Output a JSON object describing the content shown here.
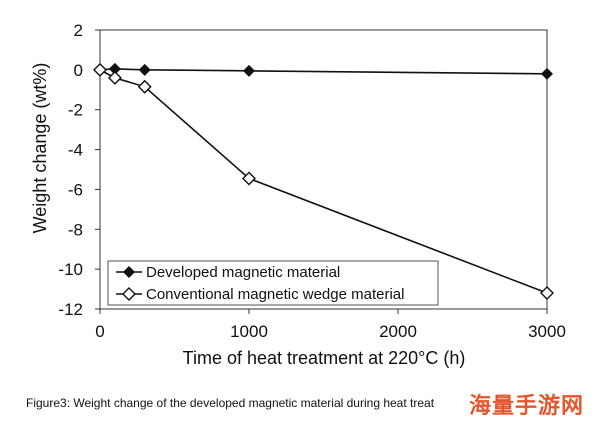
{
  "chart_data": {
    "type": "line",
    "xlabel": "Time of heat treatment at 220°C (h)",
    "ylabel": "Weight change (wt%)",
    "xlim": [
      0,
      3000
    ],
    "ylim": [
      -12,
      2
    ],
    "x_ticks": [
      0,
      1000,
      2000,
      3000
    ],
    "y_ticks": [
      2,
      0,
      -2,
      -4,
      -6,
      -8,
      -10,
      -12
    ],
    "x_tick_labels": [
      "0",
      "1000",
      "2000",
      "3000"
    ],
    "y_tick_labels": [
      "2",
      "0",
      "-2",
      "-4",
      "-6",
      "-8",
      "-10",
      "-12"
    ],
    "grid": false,
    "legend_position": "bottom-left",
    "series": [
      {
        "name": "Developed magnetic material",
        "marker": "filled-diamond",
        "color": "#111111",
        "x": [
          0,
          100,
          300,
          1000,
          3000
        ],
        "y": [
          0.0,
          0.05,
          0.0,
          -0.05,
          -0.2
        ]
      },
      {
        "name": "Conventional magnetic wedge material",
        "marker": "open-diamond",
        "color": "#111111",
        "x": [
          0,
          100,
          300,
          1000,
          3000
        ],
        "y": [
          0.0,
          -0.4,
          -0.85,
          -5.45,
          -11.2
        ]
      }
    ]
  },
  "caption": "Figure3: Weight change of the developed magnetic material during heat treat",
  "watermark": "海量手游网"
}
